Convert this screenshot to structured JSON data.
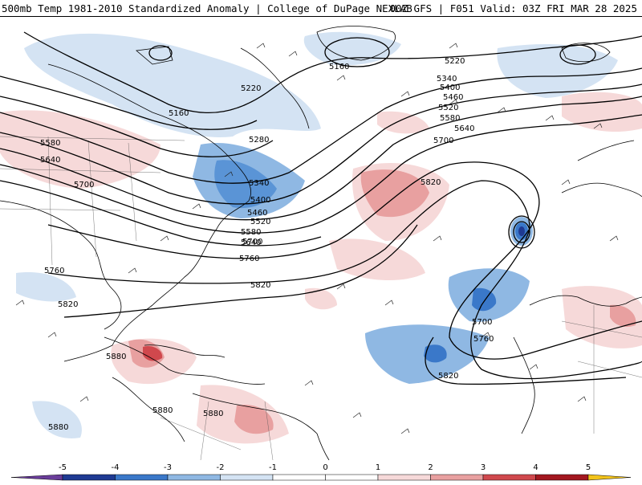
{
  "header": {
    "left_title": "500mb Temp 1981-2010 Standardized Anomaly | College of DuPage NEXLAB",
    "right_title": "00Z GFS | F051 Valid: 03Z FRI MAR 28 2025"
  },
  "map": {
    "projection": "north-atlantic",
    "background_color": "#ffffff",
    "land_outline_color": "#000000",
    "contour_labels": [
      "5160",
      "5220",
      "5280",
      "5340",
      "5400",
      "5460",
      "5520",
      "5580",
      "5640",
      "5700",
      "5760",
      "5820",
      "5880"
    ],
    "top_right_labels": [
      "5220",
      "5340",
      "5400",
      "5460",
      "5520",
      "5580",
      "5640",
      "5700"
    ],
    "anomaly_colors": {
      "neg5": "#6a3d9a",
      "neg4": "#1f3a93",
      "neg3": "#3a78c9",
      "neg2": "#8fb8e3",
      "neg1": "#d4e3f3",
      "pos1": "#f6d9d9",
      "pos2": "#e8a0a0",
      "pos3": "#d0484d",
      "pos4": "#a31820",
      "pos5": "#f2c31a"
    }
  },
  "colorbar": {
    "ticks": [
      "-5",
      "-4",
      "-3",
      "-2",
      "-1",
      "0",
      "1",
      "2",
      "3",
      "4",
      "5"
    ],
    "colors": [
      "#6a3d9a",
      "#1f3a93",
      "#3a78c9",
      "#8fb8e3",
      "#d4e3f3",
      "#ffffff",
      "#ffffff",
      "#f6d9d9",
      "#e8a0a0",
      "#d0484d",
      "#a31820",
      "#f2c31a"
    ]
  }
}
